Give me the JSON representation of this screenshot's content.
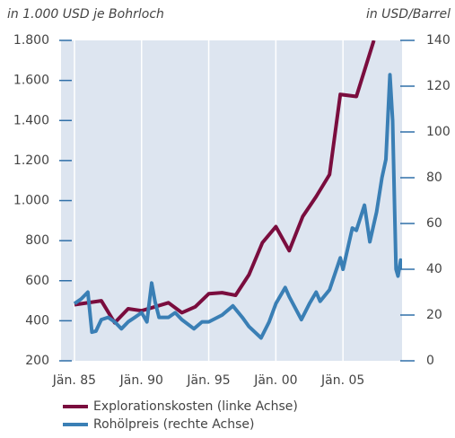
{
  "chart_data": {
    "type": "line",
    "ylabel": "in 1.000 USD je Bohrloch",
    "y2label": "in USD/Barrel",
    "xlim": [
      1984,
      2009.4
    ],
    "xticks": [
      {
        "value": 1985,
        "label": "Jän. 85"
      },
      {
        "value": 1990,
        "label": "Jän. 90"
      },
      {
        "value": 1995,
        "label": "Jän. 95"
      },
      {
        "value": 2000,
        "label": "Jän. 00"
      },
      {
        "value": 2005,
        "label": "Jän. 05"
      }
    ],
    "ylim": [
      200,
      1800
    ],
    "yticks": [
      {
        "value": 200,
        "label": "200"
      },
      400,
      600,
      800,
      {
        "value": 1000,
        "label": "1.000"
      },
      {
        "value": 1200,
        "label": "1.200"
      },
      {
        "value": 1400,
        "label": "1.400"
      },
      {
        "value": 1600,
        "label": "1.600"
      },
      {
        "value": 1800,
        "label": "1.800"
      }
    ],
    "y2lim": [
      0,
      140
    ],
    "y2ticks": [
      0,
      20,
      40,
      60,
      80,
      100,
      120,
      140
    ],
    "grid": true,
    "series": [
      {
        "name": "Explorationskosten (linke Achse)",
        "color": "#7a0d3e",
        "axis": "y",
        "x": [
          1985,
          1987,
          1988,
          1989,
          1990,
          1991,
          1992,
          1993,
          1994,
          1995,
          1996,
          1997,
          1998,
          1999,
          2000,
          2001,
          2002,
          2003,
          2004,
          2004.8,
          2006,
          2007.3
        ],
        "values": [
          480,
          500,
          390,
          460,
          450,
          470,
          490,
          440,
          470,
          535,
          540,
          527,
          630,
          790,
          870,
          750,
          920,
          1020,
          1130,
          1530,
          1520,
          1800
        ]
      },
      {
        "name": "Rohölpreis (rechte Achse)",
        "color": "#3a7fb5",
        "axis": "y2",
        "x": [
          1985,
          1985.5,
          1986,
          1986.3,
          1986.6,
          1987,
          1987.5,
          1988,
          1988.5,
          1989,
          1989.5,
          1990,
          1990.4,
          1990.75,
          1991,
          1991.3,
          1992,
          1992.5,
          1993,
          1993.9,
          1994.5,
          1995,
          1996,
          1996.8,
          1997.5,
          1998,
          1998.9,
          1999.5,
          2000,
          2000.7,
          2001,
          2001.9,
          2002.5,
          2003,
          2003.3,
          2004,
          2004.8,
          2005,
          2005.7,
          2006,
          2006.6,
          2007,
          2007.5,
          2007.9,
          2008.2,
          2008.5,
          2008.7,
          2008.85,
          2008.95,
          2009.1,
          2009.3,
          2009.4
        ],
        "values": [
          25,
          27,
          30,
          12.5,
          13,
          18,
          19,
          17,
          14,
          17,
          19,
          21,
          17,
          34,
          26,
          19,
          19,
          21,
          18,
          14,
          17,
          17,
          20,
          24,
          19,
          15,
          10,
          17,
          25,
          32,
          28,
          18,
          25,
          30,
          26,
          31,
          45,
          40,
          58,
          57,
          68,
          52,
          65,
          80,
          88,
          125,
          105,
          65,
          40,
          37,
          44,
          40
        ]
      }
    ]
  }
}
